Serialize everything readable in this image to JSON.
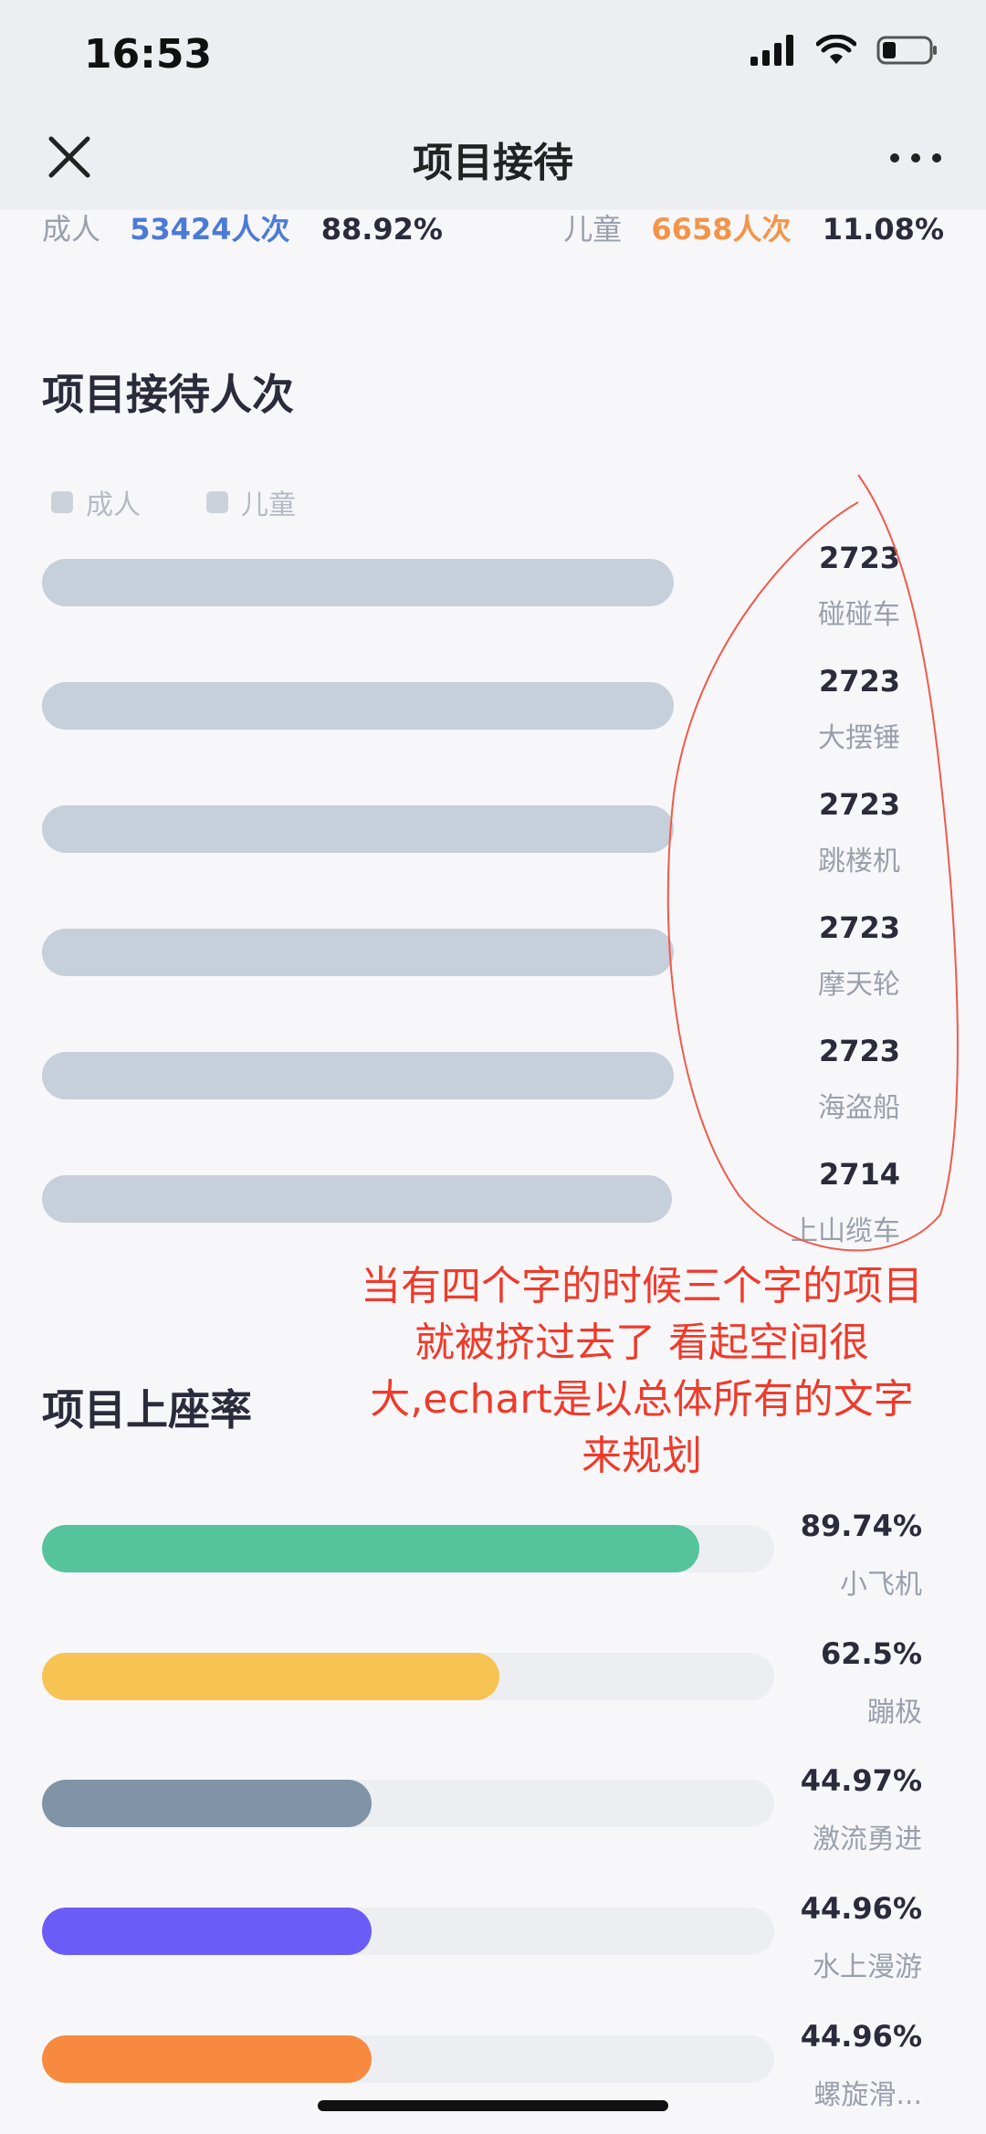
{
  "status_bar": {
    "time": "16:53"
  },
  "nav": {
    "title": "项目接待"
  },
  "summary": {
    "adult": {
      "label": "成人",
      "count": "53424人次",
      "percent": "88.92%",
      "color": "#4c7bd6"
    },
    "child": {
      "label": "儿童",
      "count": "6658人次",
      "percent": "11.08%",
      "color": "#f39449"
    }
  },
  "reception": {
    "title": "项目接待人次",
    "legend": [
      "成人",
      "儿童"
    ],
    "items": [
      {
        "value": "2723",
        "name": "碰碰车"
      },
      {
        "value": "2723",
        "name": "大摆锤"
      },
      {
        "value": "2723",
        "name": "跳楼机"
      },
      {
        "value": "2723",
        "name": "摩天轮"
      },
      {
        "value": "2723",
        "name": "海盗船"
      },
      {
        "value": "2714",
        "name": "上山缆车"
      }
    ]
  },
  "annotation": "当有四个字的时候三个字的项目就被挤过去了 看起空间很大,echart是以总体所有的文字来规划",
  "occupancy": {
    "title": "项目上座率",
    "items": [
      {
        "value": "89.74%",
        "name": "小飞机",
        "fraction": 0.8974,
        "color": "#55c39c"
      },
      {
        "value": "62.5%",
        "name": "蹦极",
        "fraction": 0.625,
        "color": "#f7c454"
      },
      {
        "value": "44.97%",
        "name": "激流勇进",
        "fraction": 0.4497,
        "color": "#8093a7"
      },
      {
        "value": "44.96%",
        "name": "水上漫游",
        "fraction": 0.4496,
        "color": "#6c5cf7"
      },
      {
        "value": "44.96%",
        "name": "螺旋滑...",
        "fraction": 0.4496,
        "color": "#f88a40"
      }
    ]
  }
}
